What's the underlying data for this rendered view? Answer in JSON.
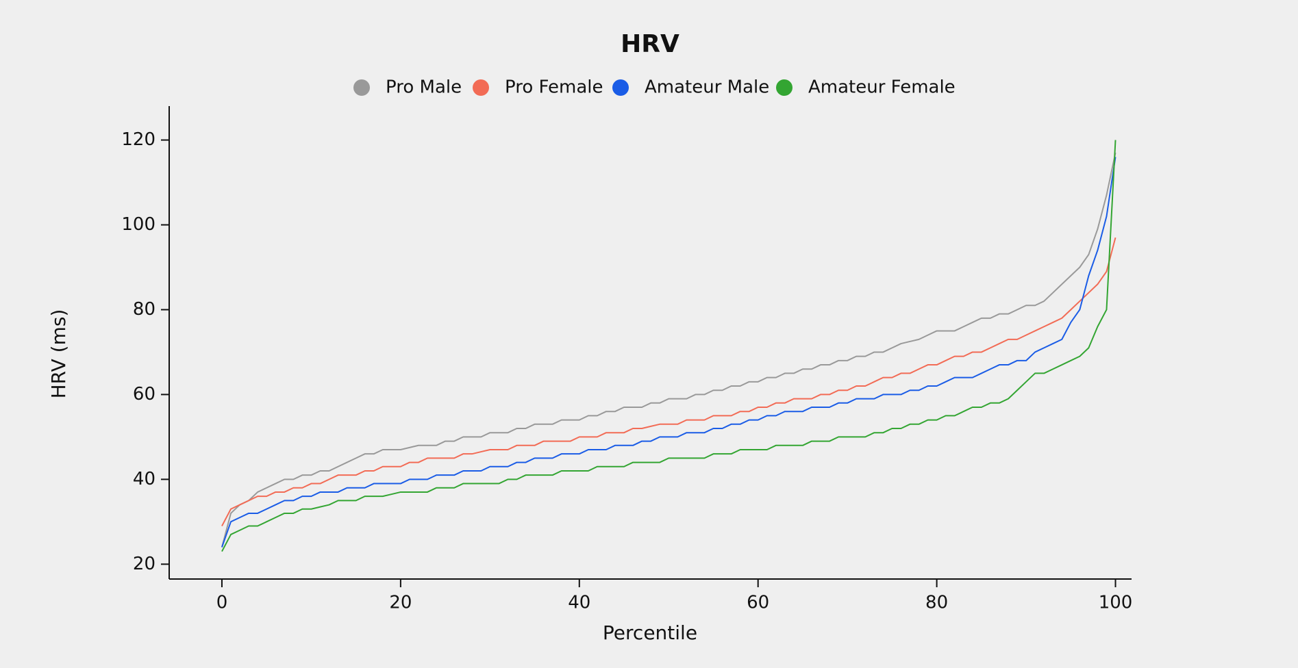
{
  "chart_data": {
    "type": "line",
    "title": "HRV",
    "xlabel": "Percentile",
    "ylabel": "HRV (ms)",
    "x": [
      0,
      1,
      2,
      3,
      4,
      5,
      6,
      7,
      8,
      9,
      10,
      11,
      12,
      13,
      14,
      15,
      16,
      17,
      18,
      19,
      20,
      21,
      22,
      23,
      24,
      25,
      26,
      27,
      28,
      29,
      30,
      31,
      32,
      33,
      34,
      35,
      36,
      37,
      38,
      39,
      40,
      41,
      42,
      43,
      44,
      45,
      46,
      47,
      48,
      49,
      50,
      51,
      52,
      53,
      54,
      55,
      56,
      57,
      58,
      59,
      60,
      61,
      62,
      63,
      64,
      65,
      66,
      67,
      68,
      69,
      70,
      71,
      72,
      73,
      74,
      75,
      76,
      77,
      78,
      79,
      80,
      81,
      82,
      83,
      84,
      85,
      86,
      87,
      88,
      89,
      90,
      91,
      92,
      93,
      94,
      95,
      96,
      97,
      98,
      99,
      100
    ],
    "series": [
      {
        "name": "Pro Male",
        "color": "#999999",
        "values": [
          24,
          32,
          34,
          35,
          37,
          38,
          39,
          40,
          40,
          41,
          41,
          42,
          42,
          43,
          44,
          45,
          46,
          46,
          47,
          47,
          47,
          47.5,
          48,
          48,
          48,
          49,
          49,
          50,
          50,
          50,
          51,
          51,
          51,
          52,
          52,
          53,
          53,
          53,
          54,
          54,
          54,
          55,
          55,
          56,
          56,
          57,
          57,
          57,
          58,
          58,
          59,
          59,
          59,
          60,
          60,
          61,
          61,
          62,
          62,
          63,
          63,
          64,
          64,
          65,
          65,
          66,
          66,
          67,
          67,
          68,
          68,
          69,
          69,
          70,
          70,
          71,
          72,
          72.5,
          73,
          74,
          75,
          75,
          75,
          76,
          77,
          78,
          78,
          79,
          79,
          80,
          81,
          81,
          82,
          84,
          86,
          88,
          90,
          93,
          99,
          107,
          117
        ]
      },
      {
        "name": "Pro Female",
        "color": "#f26b55",
        "values": [
          29,
          33,
          34,
          35,
          36,
          36,
          37,
          37,
          38,
          38,
          39,
          39,
          40,
          41,
          41,
          41,
          42,
          42,
          43,
          43,
          43,
          44,
          44,
          45,
          45,
          45,
          45,
          46,
          46,
          46.5,
          47,
          47,
          47,
          48,
          48,
          48,
          49,
          49,
          49,
          49,
          50,
          50,
          50,
          51,
          51,
          51,
          52,
          52,
          52.5,
          53,
          53,
          53,
          54,
          54,
          54,
          55,
          55,
          55,
          56,
          56,
          57,
          57,
          58,
          58,
          59,
          59,
          59,
          60,
          60,
          61,
          61,
          62,
          62,
          63,
          64,
          64,
          65,
          65,
          66,
          67,
          67,
          68,
          69,
          69,
          70,
          70,
          71,
          72,
          73,
          73,
          74,
          75,
          76,
          77,
          78,
          80,
          82,
          84,
          86,
          89,
          97
        ]
      },
      {
        "name": "Amateur Male",
        "color": "#1a5ce6",
        "values": [
          24,
          30,
          31,
          32,
          32,
          33,
          34,
          35,
          35,
          36,
          36,
          37,
          37,
          37,
          38,
          38,
          38,
          39,
          39,
          39,
          39,
          40,
          40,
          40,
          41,
          41,
          41,
          42,
          42,
          42,
          43,
          43,
          43,
          44,
          44,
          45,
          45,
          45,
          46,
          46,
          46,
          47,
          47,
          47,
          48,
          48,
          48,
          49,
          49,
          50,
          50,
          50,
          51,
          51,
          51,
          52,
          52,
          53,
          53,
          54,
          54,
          55,
          55,
          56,
          56,
          56,
          57,
          57,
          57,
          58,
          58,
          59,
          59,
          59,
          60,
          60,
          60,
          61,
          61,
          62,
          62,
          63,
          64,
          64,
          64,
          65,
          66,
          67,
          67,
          68,
          68,
          70,
          71,
          72,
          73,
          77,
          80,
          88,
          94,
          102,
          116
        ]
      },
      {
        "name": "Amateur Female",
        "color": "#33a532",
        "values": [
          23,
          27,
          28,
          29,
          29,
          30,
          31,
          32,
          32,
          33,
          33,
          33.5,
          34,
          35,
          35,
          35,
          36,
          36,
          36,
          36.5,
          37,
          37,
          37,
          37,
          38,
          38,
          38,
          39,
          39,
          39,
          39,
          39,
          40,
          40,
          41,
          41,
          41,
          41,
          42,
          42,
          42,
          42,
          43,
          43,
          43,
          43,
          44,
          44,
          44,
          44,
          45,
          45,
          45,
          45,
          45,
          46,
          46,
          46,
          47,
          47,
          47,
          47,
          48,
          48,
          48,
          48,
          49,
          49,
          49,
          50,
          50,
          50,
          50,
          51,
          51,
          52,
          52,
          53,
          53,
          54,
          54,
          55,
          55,
          56,
          57,
          57,
          58,
          58,
          59,
          61,
          63,
          65,
          65,
          66,
          67,
          68,
          69,
          71,
          76,
          80,
          120
        ]
      }
    ],
    "xlim": [
      -5.9,
      101.8
    ],
    "xticks": [
      0,
      20,
      40,
      60,
      80,
      100
    ],
    "ylim": [
      16.5,
      128
    ],
    "yticks": [
      20,
      40,
      60,
      80,
      100,
      120
    ],
    "grid": false,
    "legend": "top"
  }
}
